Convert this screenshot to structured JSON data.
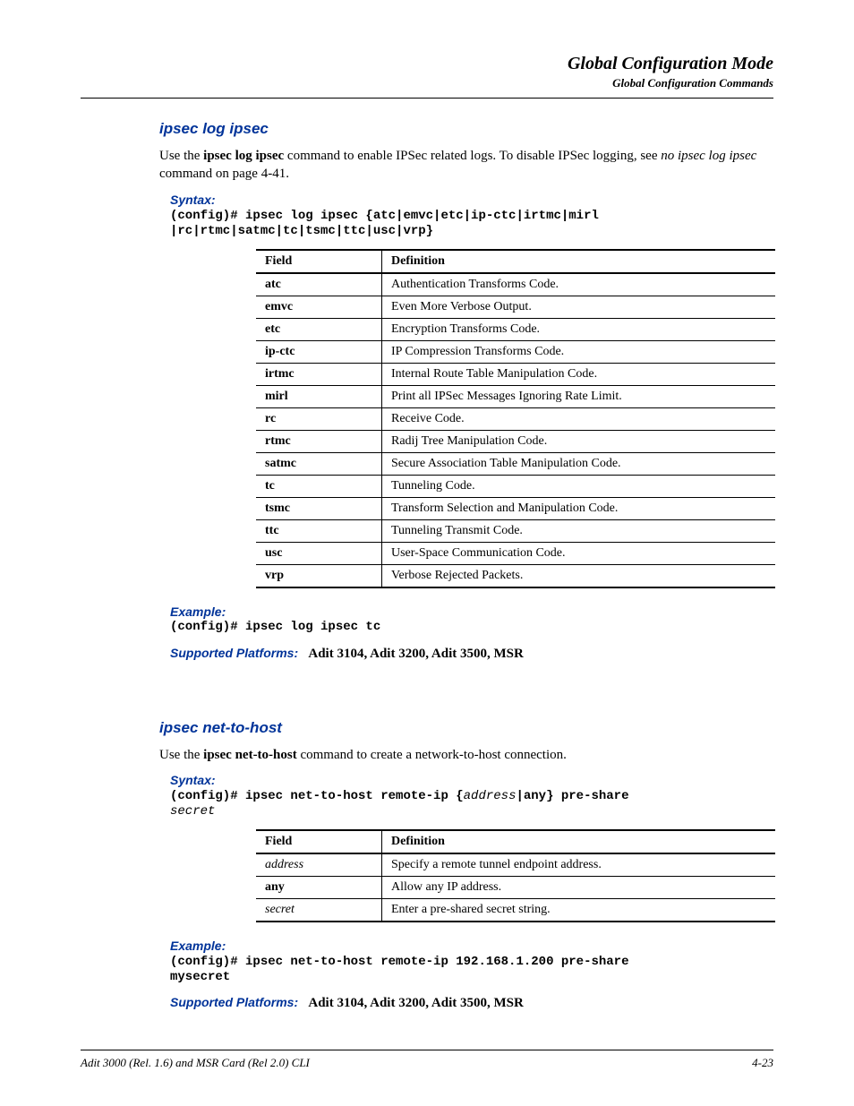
{
  "header": {
    "title": "Global Configuration Mode",
    "subtitle": "Global Configuration Commands"
  },
  "section1": {
    "title": "ipsec log ipsec",
    "intro_pre": "Use the ",
    "intro_cmd": "ipsec log ipsec",
    "intro_mid": " command to enable IPSec related logs. To disable IPSec logging, see ",
    "intro_ref": "no ipsec log ipsec",
    "intro_post": " command on page 4-41.",
    "syntax_label": "Syntax:",
    "syntax_line1": "(config)# ipsec log ipsec {atc|emvc|etc|ip-ctc|irtmc|mirl",
    "syntax_line2": "|rc|rtmc|satmc|tc|tsmc|ttc|usc|vrp}",
    "table_head_field": "Field",
    "table_head_def": "Definition",
    "rows": [
      {
        "f": "atc",
        "d": "Authentication Transforms Code."
      },
      {
        "f": "emvc",
        "d": "Even More Verbose Output."
      },
      {
        "f": "etc",
        "d": "Encryption Transforms Code."
      },
      {
        "f": "ip-ctc",
        "d": "IP Compression Transforms Code."
      },
      {
        "f": "irtmc",
        "d": "Internal Route Table Manipulation Code."
      },
      {
        "f": "mirl",
        "d": "Print all IPSec Messages Ignoring Rate Limit."
      },
      {
        "f": "rc",
        "d": "Receive Code."
      },
      {
        "f": "rtmc",
        "d": "Radij Tree Manipulation Code."
      },
      {
        "f": "satmc",
        "d": "Secure Association Table Manipulation Code."
      },
      {
        "f": "tc",
        "d": "Tunneling Code."
      },
      {
        "f": "tsmc",
        "d": "Transform Selection and Manipulation Code."
      },
      {
        "f": "ttc",
        "d": "Tunneling Transmit Code."
      },
      {
        "f": "usc",
        "d": "User-Space Communication Code."
      },
      {
        "f": "vrp",
        "d": "Verbose Rejected Packets."
      }
    ],
    "example_label": "Example:",
    "example_text": "(config)# ipsec log ipsec tc",
    "platforms_label": "Supported Platforms:",
    "platforms_text": "Adit 3104, Adit 3200, Adit 3500, MSR"
  },
  "section2": {
    "title": "ipsec net-to-host",
    "intro_pre": "Use the ",
    "intro_cmd": "ipsec net-to-host",
    "intro_post": " command to create a network-to-host connection.",
    "syntax_label": "Syntax:",
    "syntax_p1": "(config)# ipsec net-to-host remote-ip {",
    "syntax_a1": "address",
    "syntax_p2": "|any} pre-share",
    "syntax_a2": "secret",
    "table_head_field": "Field",
    "table_head_def": "Definition",
    "rows": [
      {
        "f": "address",
        "d": "Specify a remote tunnel endpoint address.",
        "italic": true
      },
      {
        "f": "any",
        "d": "Allow any IP address.",
        "italic": false
      },
      {
        "f": "secret",
        "d": "Enter a pre-shared secret string.",
        "italic": true
      }
    ],
    "example_label": "Example:",
    "example_line1": "(config)# ipsec net-to-host remote-ip 192.168.1.200 pre-share",
    "example_line2": "mysecret",
    "platforms_label": "Supported Platforms:",
    "platforms_text": "Adit 3104, Adit 3200, Adit 3500, MSR"
  },
  "footer": {
    "left": "Adit 3000 (Rel. 1.6) and MSR Card (Rel 2.0) CLI",
    "right": "4-23"
  }
}
